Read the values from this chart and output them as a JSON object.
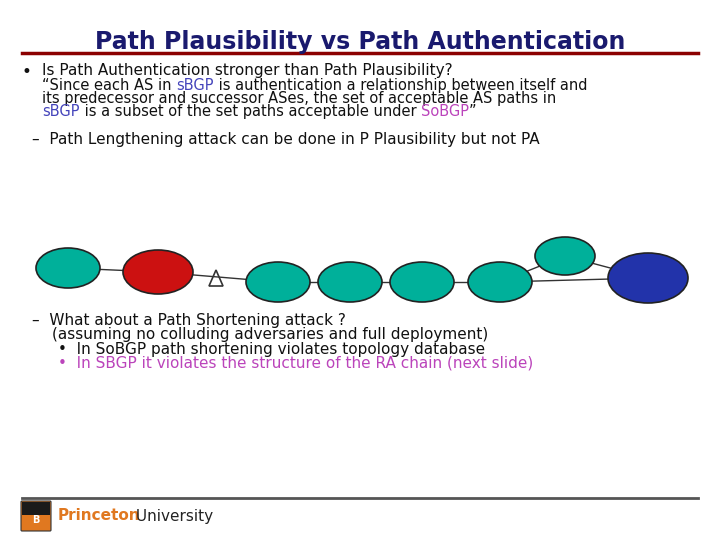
{
  "title": "Path Plausibility vs Path Authentication",
  "title_color": "#1a1a6e",
  "title_fontsize": 17,
  "bg_color": "#ffffff",
  "title_line_color": "#8b0000",
  "bullet1_text": "Is Path Authentication stronger than Path Plausibility?",
  "dash1": "Path Lengthening attack can be done in P Plausibility but not PA",
  "dash2_line1": "What about a Path Shortening attack ?",
  "dash2_line2": "(assuming no colluding adversaries and full deployment)",
  "bullet2a": "In SoBGP path shortening violates topology database",
  "bullet2b": "In SBGP it violates the structure of the RA chain (next slide)",
  "bullet2b_color": "#bb44bb",
  "princeton_color": "#e07820",
  "node_teal": "#00b09a",
  "node_red": "#cc1111",
  "node_blue": "#2233aa",
  "sbgp_color": "#4444bb",
  "sobgp_color": "#bb44bb",
  "footer_line_color": "#555555",
  "text_color": "#111111"
}
